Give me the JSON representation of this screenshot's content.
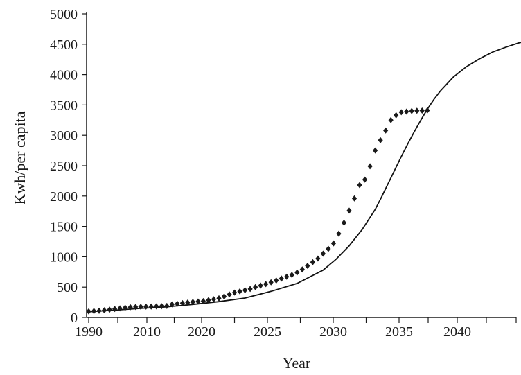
{
  "chart_data": {
    "type": "scatter",
    "xlabel": "Year",
    "ylabel": "Kwh/per capita",
    "x_tick_labels": [
      "1990",
      "2010",
      "2020",
      "2025",
      "2030",
      "2035",
      "2040"
    ],
    "y_tick_labels": [
      "0",
      "500",
      "1000",
      "1500",
      "2000",
      "2500",
      "3000",
      "3500",
      "4000",
      "4500",
      "5000"
    ],
    "ylim": [
      0,
      5000
    ],
    "grid": false,
    "legend": "none",
    "colors": {
      "line": "#111111",
      "marker": "#1a1a1a"
    },
    "series": [
      {
        "kind": "observed",
        "marker": "diamond",
        "x": [
          0,
          0.4,
          0.8,
          1.2,
          1.6,
          2.0,
          2.4,
          2.8,
          3.2,
          3.6,
          4.0,
          4.4,
          4.8,
          5.2,
          5.6,
          6.0,
          6.4,
          6.8,
          7.2,
          7.6,
          8.0,
          8.4,
          8.8,
          9.2,
          9.6,
          10.0,
          10.4,
          10.8,
          11.2,
          11.6,
          12.0,
          12.4,
          12.8,
          13.2,
          13.6,
          14.0,
          14.4,
          14.8,
          15.2,
          15.6,
          16.0,
          16.4,
          16.8,
          17.2,
          17.6,
          18.0,
          18.4,
          18.8,
          19.2,
          19.6,
          20.0,
          20.4,
          20.8,
          21.2,
          21.6,
          22.0,
          22.4,
          22.8,
          23.2,
          23.6,
          24.0,
          24.4,
          24.8,
          25.2,
          25.6,
          26.0
        ],
        "y": [
          100,
          105,
          110,
          118,
          128,
          140,
          150,
          160,
          168,
          172,
          175,
          178,
          180,
          182,
          185,
          190,
          215,
          225,
          235,
          245,
          255,
          262,
          270,
          285,
          300,
          315,
          345,
          380,
          410,
          430,
          450,
          470,
          500,
          525,
          550,
          580,
          610,
          640,
          670,
          700,
          740,
          790,
          850,
          910,
          970,
          1050,
          1130,
          1220,
          1380,
          1560,
          1760,
          1960,
          2180,
          2270,
          2490,
          2750,
          2920,
          3080,
          3250,
          3330,
          3380,
          3390,
          3400,
          3405,
          3408,
          3410
        ]
      },
      {
        "kind": "fit",
        "x": [
          0,
          2,
          4,
          6,
          8,
          10,
          12,
          14,
          16,
          17,
          18,
          19,
          20,
          21,
          22,
          22.5,
          23,
          23.5,
          24,
          24.5,
          25,
          25.5,
          26,
          26.5,
          27,
          28,
          29,
          30,
          31,
          32,
          33,
          34,
          35,
          36,
          37,
          38,
          39,
          40,
          41,
          41.3
        ],
        "y": [
          95,
          120,
          150,
          175,
          215,
          260,
          320,
          430,
          560,
          670,
          780,
          960,
          1180,
          1450,
          1780,
          1990,
          2210,
          2430,
          2650,
          2860,
          3060,
          3250,
          3430,
          3590,
          3730,
          3960,
          4130,
          4260,
          4370,
          4450,
          4520,
          4570,
          4610,
          4640,
          4660,
          4680,
          4695,
          4710,
          4730,
          4740
        ]
      }
    ]
  }
}
